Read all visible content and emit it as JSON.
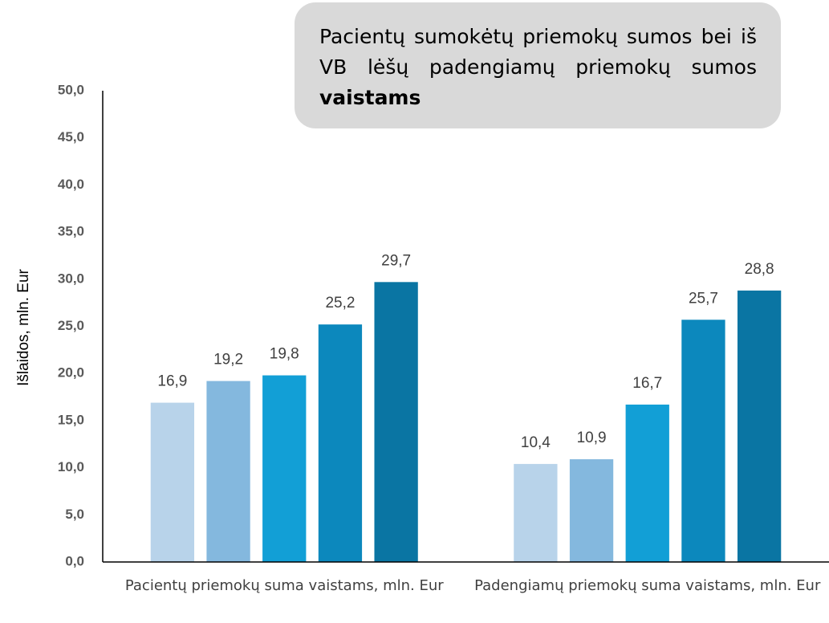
{
  "chart_data": {
    "type": "bar",
    "title": "Pacientų sumokėtų priemokų sumos bei iš VB lėšų padengiamų priemokų sumos",
    "title_emphasis": "vaistams",
    "ylabel": "Išlaidos, mln. Eur",
    "categories": [
      "Pacientų priemokų suma vaistams, mln. Eur",
      "Padengiamų priemokų suma vaistams, mln. Eur"
    ],
    "series": [
      {
        "color": "#b8d3ea",
        "values": [
          16.9,
          10.4
        ],
        "value_labels": [
          "16,9",
          "10,4"
        ]
      },
      {
        "color": "#84b8de",
        "values": [
          19.2,
          10.9
        ],
        "value_labels": [
          "19,2",
          "10,9"
        ]
      },
      {
        "color": "#129fd6",
        "values": [
          19.8,
          16.7
        ],
        "value_labels": [
          "19,8",
          "16,7"
        ]
      },
      {
        "color": "#0c88bd",
        "values": [
          25.2,
          25.7
        ],
        "value_labels": [
          "25,2",
          "25,7"
        ]
      },
      {
        "color": "#0a75a3",
        "values": [
          29.7,
          28.8
        ],
        "value_labels": [
          "29,7",
          "28,8"
        ]
      }
    ],
    "ylim": [
      0,
      50
    ],
    "yticks": [
      {
        "value": 0,
        "label": "0,0"
      },
      {
        "value": 5,
        "label": "5,0"
      },
      {
        "value": 10,
        "label": "10,0"
      },
      {
        "value": 15,
        "label": "15,0"
      },
      {
        "value": 20,
        "label": "20,0"
      },
      {
        "value": 25,
        "label": "25,0"
      },
      {
        "value": 30,
        "label": "30,0"
      },
      {
        "value": 35,
        "label": "35,0"
      },
      {
        "value": 40,
        "label": "40,0"
      },
      {
        "value": 45,
        "label": "45,0"
      },
      {
        "value": 50,
        "label": "50,0"
      }
    ],
    "grid": false
  }
}
